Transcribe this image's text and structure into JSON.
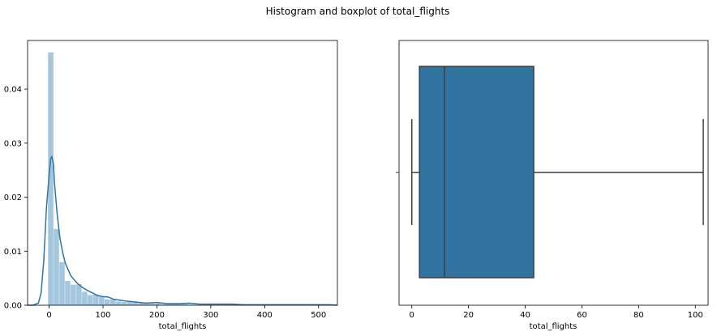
{
  "figure": {
    "title": "Histogram and boxplot of total_flights"
  },
  "chart_data": [
    {
      "type": "bar",
      "subtype": "histogram-with-kde",
      "xlabel": "total_flights",
      "ylabel": "",
      "xlim": [
        -40,
        535
      ],
      "ylim": [
        0,
        0.049
      ],
      "xticks": [
        0,
        100,
        200,
        300,
        400,
        500
      ],
      "yticks": [
        0.0,
        0.01,
        0.02,
        0.03,
        0.04
      ],
      "xtick_labels": [
        "0",
        "100",
        "200",
        "300",
        "400",
        "500"
      ],
      "ytick_labels": [
        "0.00",
        "0.01",
        "0.02",
        "0.03",
        "0.04"
      ],
      "bin_width": 10.5,
      "bin_start": -2,
      "bin_heights": [
        0.0468,
        0.0141,
        0.008,
        0.0045,
        0.0038,
        0.0039,
        0.0025,
        0.0019,
        0.002,
        0.0016,
        0.0011,
        0.0011,
        0.0007,
        0.0006,
        0.0006,
        0.0006,
        0.0004,
        0.0004,
        0.0003,
        0.0003,
        0.0002,
        0.0002,
        0.0002,
        0.0002,
        0.0002,
        0.0001,
        0.0001,
        0.0001,
        0.0001,
        0.0001,
        0.0001,
        0.0001,
        0.0001,
        0.0001,
        0.0001,
        0.0001,
        0.0001,
        0.0001,
        0.0001,
        0.0001,
        0.0001,
        0.0001,
        0.0001,
        0.0001,
        0.0001,
        0.0001,
        0.0001,
        0.0001,
        0.0001,
        0.0001
      ],
      "kde": {
        "x": [
          -40,
          -30,
          -20,
          -15,
          -10,
          -5,
          0,
          3,
          5,
          8,
          10,
          15,
          20,
          25,
          30,
          40,
          50,
          60,
          70,
          80,
          90,
          100,
          110,
          120,
          140,
          160,
          180,
          200,
          220,
          240,
          260,
          280,
          300,
          320,
          340,
          360,
          380,
          400,
          420,
          440,
          460,
          480,
          500,
          520,
          535
        ],
        "y": [
          0.0,
          0.0,
          0.0004,
          0.0022,
          0.0082,
          0.018,
          0.024,
          0.0272,
          0.0275,
          0.0262,
          0.0225,
          0.0168,
          0.0125,
          0.0098,
          0.0078,
          0.0055,
          0.0043,
          0.0034,
          0.0028,
          0.0023,
          0.0018,
          0.0016,
          0.0015,
          0.0011,
          0.0008,
          0.0006,
          0.0004,
          0.0005,
          0.0003,
          0.0003,
          0.0004,
          0.0002,
          0.0002,
          0.0002,
          0.0002,
          0.0001,
          0.0001,
          0.0001,
          0.0001,
          0.0001,
          0.0001,
          0.0001,
          0.0001,
          0.0001,
          0.0
        ]
      },
      "bar_color": "#a4c7df",
      "line_color": "#3274a1"
    },
    {
      "type": "boxplot",
      "xlabel": "total_flights",
      "xlim": [
        -4.5,
        104.5
      ],
      "xticks": [
        0,
        20,
        40,
        60,
        80,
        100
      ],
      "xtick_labels": [
        "0",
        "20",
        "40",
        "60",
        "80",
        "100"
      ],
      "whisker_low": 0,
      "q1": 2.7,
      "median": 11.5,
      "q3": 43.0,
      "whisker_high": 102.8,
      "box_color": "#3274a1",
      "line_color": "#3f3f3f"
    }
  ]
}
